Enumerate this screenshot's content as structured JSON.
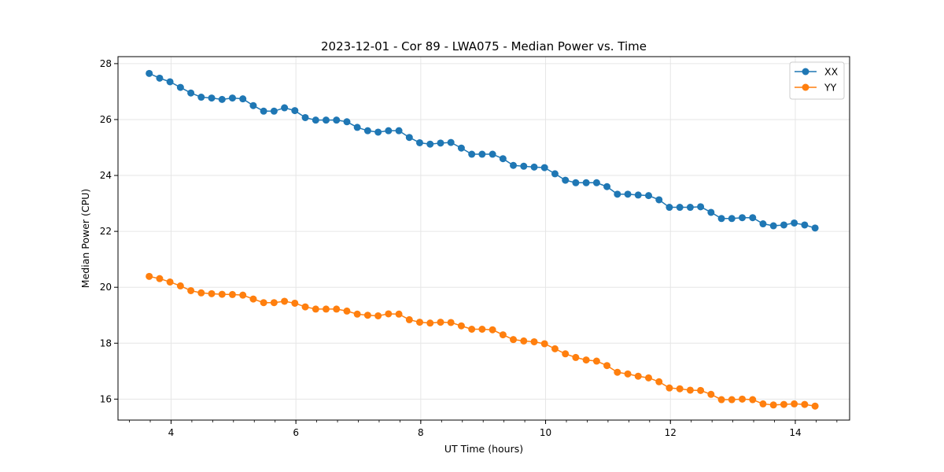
{
  "chart_data": {
    "type": "line",
    "title": "2023-12-01 - Cor 89 - LWA075 - Median Power vs. Time",
    "xlabel": "UT Time (hours)",
    "ylabel": "Median Power (CPU)",
    "xlim": [
      3.15,
      14.87
    ],
    "ylim": [
      15.25,
      28.25
    ],
    "x_ticks": [
      4,
      6,
      8,
      10,
      12,
      14
    ],
    "x_minor_tick_step": 0.333333,
    "y_ticks": [
      16,
      18,
      20,
      22,
      24,
      26,
      28
    ],
    "grid": true,
    "legend_position": "top-right",
    "x": [
      3.65,
      3.817,
      3.983,
      4.15,
      4.317,
      4.483,
      4.65,
      4.817,
      4.983,
      5.15,
      5.317,
      5.483,
      5.65,
      5.817,
      5.983,
      6.15,
      6.317,
      6.483,
      6.65,
      6.817,
      6.983,
      7.15,
      7.317,
      7.483,
      7.65,
      7.817,
      7.983,
      8.15,
      8.317,
      8.483,
      8.65,
      8.817,
      8.983,
      9.15,
      9.317,
      9.483,
      9.65,
      9.817,
      9.983,
      10.15,
      10.317,
      10.483,
      10.65,
      10.817,
      10.983,
      11.15,
      11.317,
      11.483,
      11.65,
      11.817,
      11.983,
      12.15,
      12.317,
      12.483,
      12.65,
      12.817,
      12.983,
      13.15,
      13.317,
      13.483,
      13.65,
      13.817,
      13.983,
      14.15,
      14.317
    ],
    "series": [
      {
        "name": "XX",
        "color": "#1f77b4",
        "values": [
          27.65,
          27.48,
          27.35,
          27.15,
          26.95,
          26.8,
          26.77,
          26.72,
          26.77,
          26.74,
          26.5,
          26.3,
          26.3,
          26.42,
          26.32,
          26.07,
          25.98,
          25.98,
          25.98,
          25.92,
          25.72,
          25.6,
          25.55,
          25.6,
          25.6,
          25.36,
          25.17,
          25.12,
          25.16,
          25.18,
          24.98,
          24.76,
          24.76,
          24.76,
          24.6,
          24.36,
          24.33,
          24.3,
          24.28,
          24.06,
          23.83,
          23.74,
          23.74,
          23.74,
          23.6,
          23.33,
          23.33,
          23.3,
          23.28,
          23.13,
          22.86,
          22.86,
          22.86,
          22.88,
          22.68,
          22.46,
          22.46,
          22.49,
          22.49,
          22.27,
          22.2,
          22.23,
          22.3,
          22.23,
          22.12
        ]
      },
      {
        "name": "YY",
        "color": "#ff7f0e",
        "values": [
          20.39,
          20.31,
          20.19,
          20.05,
          19.88,
          19.8,
          19.77,
          19.75,
          19.74,
          19.72,
          19.58,
          19.45,
          19.45,
          19.5,
          19.43,
          19.3,
          19.22,
          19.22,
          19.22,
          19.15,
          19.04,
          19.0,
          18.98,
          19.05,
          19.04,
          18.84,
          18.75,
          18.72,
          18.75,
          18.74,
          18.62,
          18.5,
          18.5,
          18.48,
          18.3,
          18.13,
          18.08,
          18.05,
          17.98,
          17.8,
          17.62,
          17.49,
          17.4,
          17.36,
          17.2,
          16.96,
          16.9,
          16.82,
          16.76,
          16.62,
          16.4,
          16.37,
          16.32,
          16.31,
          16.17,
          15.98,
          15.98,
          16.0,
          15.98,
          15.83,
          15.79,
          15.81,
          15.83,
          15.81,
          15.75
        ]
      }
    ]
  }
}
